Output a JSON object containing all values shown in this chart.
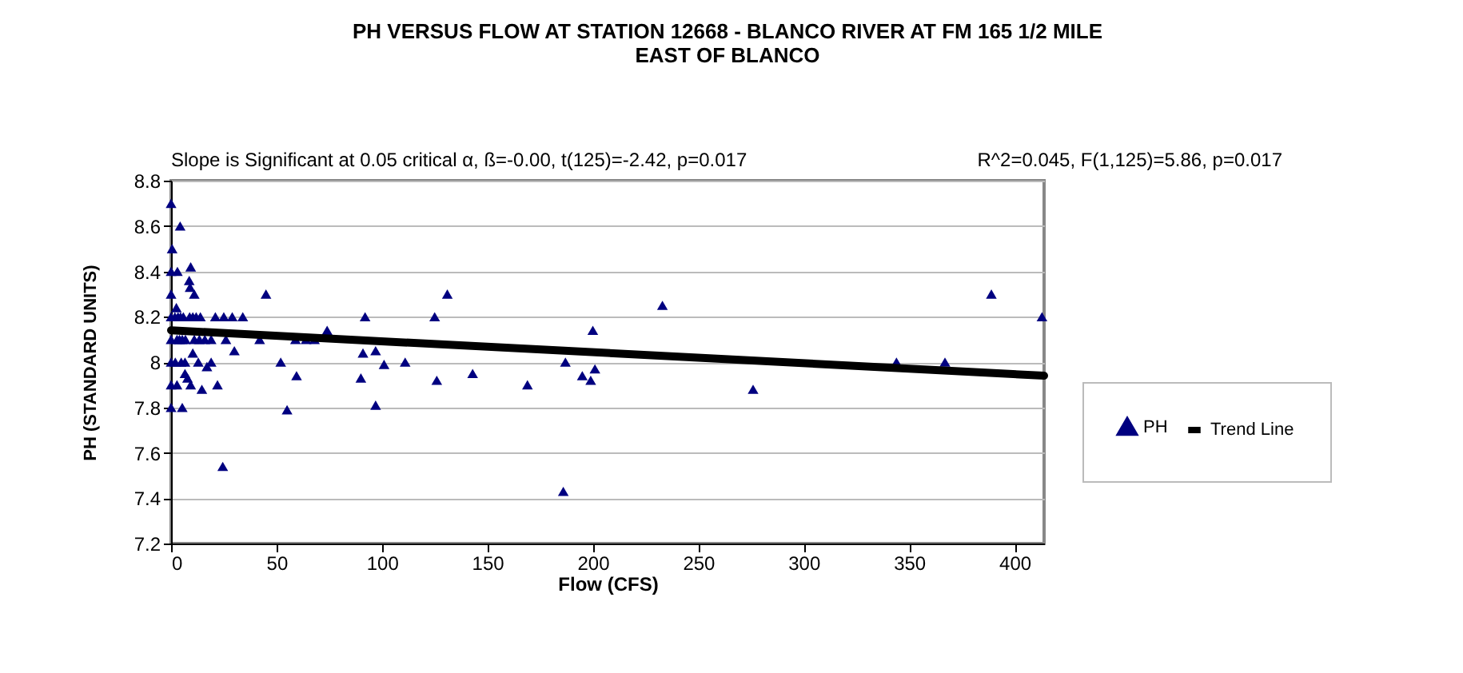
{
  "chart_data": {
    "type": "scatter",
    "title": [
      "PH VERSUS FLOW AT STATION 12668 - BLANCO RIVER AT FM 165 1/2 MILE",
      "EAST OF BLANCO"
    ],
    "xlabel": "Flow (CFS)",
    "ylabel": "PH (STANDARD UNITS)",
    "annotations": [
      "Slope is Significant at 0.05 critical α, ß=-0.00, t(125)=-2.42, p=0.017",
      "R^2=0.045, F(1,125)=5.86, p=0.017"
    ],
    "xlim": [
      0,
      414
    ],
    "xticks": [
      0,
      50,
      100,
      150,
      200,
      250,
      300,
      350,
      400
    ],
    "ylim": [
      7.2,
      8.8
    ],
    "yticks": [
      7.2,
      7.4,
      7.6,
      7.8,
      {
        "value": 8,
        "label": "8"
      },
      8.2,
      8.4,
      8.6,
      8.8
    ],
    "grid": "y",
    "legend": "right",
    "series": [
      {
        "name": "PH",
        "color": "#000080",
        "marker": "triangle",
        "x": [
          0,
          4.3,
          0.5,
          0,
          3,
          0,
          9.3,
          8.6,
          9,
          11,
          0,
          1.8,
          3.3,
          4.5,
          5.8,
          8.8,
          10.3,
          11.9,
          13.9,
          21,
          25,
          29,
          34,
          2.5,
          0,
          2.8,
          4,
          5.3,
          6.8,
          11,
          13.4,
          16,
          19,
          26,
          42,
          59,
          64,
          68,
          74,
          0,
          2,
          4.8,
          6.6,
          12.9,
          19,
          52,
          111,
          187,
          10.3,
          30,
          97,
          91,
          101,
          6.6,
          7.8,
          0,
          2.8,
          9.3,
          14.6,
          22,
          17,
          59.5,
          90,
          126,
          143,
          169,
          0,
          5.3,
          55,
          97,
          24.5,
          186,
          92,
          125,
          131,
          45,
          200,
          195,
          201,
          199,
          233,
          276,
          344,
          367,
          389,
          413
        ],
        "values": [
          8.7,
          8.6,
          8.5,
          8.4,
          8.4,
          8.3,
          8.42,
          8.36,
          8.33,
          8.3,
          8.2,
          8.2,
          8.2,
          8.2,
          8.2,
          8.2,
          8.2,
          8.2,
          8.2,
          8.2,
          8.2,
          8.2,
          8.2,
          8.24,
          8.1,
          8.1,
          8.1,
          8.1,
          8.1,
          8.1,
          8.1,
          8.1,
          8.1,
          8.1,
          8.1,
          8.1,
          8.1,
          8.1,
          8.14,
          8,
          8,
          8,
          8,
          8,
          8,
          8,
          8,
          8,
          8.04,
          8.05,
          8.05,
          8.04,
          7.99,
          7.95,
          7.93,
          7.9,
          7.9,
          7.9,
          7.88,
          7.9,
          7.98,
          7.94,
          7.93,
          7.92,
          7.95,
          7.9,
          7.8,
          7.8,
          7.79,
          7.81,
          7.54,
          7.43,
          8.2,
          8.2,
          8.3,
          8.3,
          8.14,
          7.94,
          7.97,
          7.92,
          8.25,
          7.88,
          8,
          8,
          8.3,
          8.2
        ]
      },
      {
        "name": "Trend Line",
        "type": "line",
        "marker": "none",
        "color": "#000000",
        "x": [
          0,
          414
        ],
        "values": [
          8.14,
          7.94
        ]
      }
    ]
  }
}
